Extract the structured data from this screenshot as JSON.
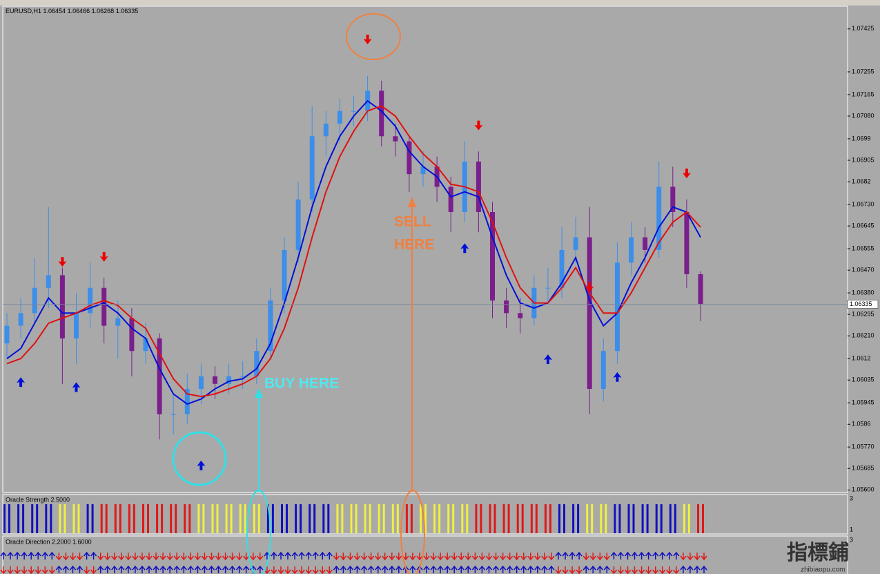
{
  "chart_data": {
    "type": "candlestick",
    "symbol": "EURUSD,H1",
    "open": [
      1.0618,
      1.0625,
      1.063,
      1.064,
      1.0645,
      1.062,
      1.063,
      1.064,
      1.0625,
      1.0628,
      1.0615,
      1.062,
      1.059,
      1.059,
      1.06,
      1.0605,
      1.0602,
      1.0605,
      1.0605,
      1.0615,
      1.0635,
      1.0655,
      1.0675,
      1.07,
      1.0705,
      1.071,
      1.071,
      1.0718,
      1.07,
      1.0698,
      1.0685,
      1.0688,
      1.068,
      1.067,
      1.069,
      1.067,
      1.0635,
      1.063,
      1.0628,
      1.064,
      1.064,
      1.0655,
      1.066,
      1.06,
      1.0615,
      1.065,
      1.066,
      1.0655,
      1.068,
      1.067,
      1.06454
    ],
    "high": [
      1.063,
      1.0636,
      1.0652,
      1.0672,
      1.0648,
      1.0638,
      1.065,
      1.0644,
      1.0635,
      1.0632,
      1.0626,
      1.0622,
      1.0598,
      1.0606,
      1.061,
      1.0609,
      1.061,
      1.0611,
      1.062,
      1.064,
      1.066,
      1.0682,
      1.0712,
      1.071,
      1.0715,
      1.0716,
      1.0724,
      1.0722,
      1.0705,
      1.07,
      1.0694,
      1.0692,
      1.0684,
      1.0698,
      1.0694,
      1.0674,
      1.064,
      1.0636,
      1.0645,
      1.0648,
      1.0664,
      1.0668,
      1.0672,
      1.062,
      1.0658,
      1.0666,
      1.0664,
      1.069,
      1.0688,
      1.0675,
      1.06466
    ],
    "low": [
      1.0612,
      1.062,
      1.0626,
      1.0632,
      1.0602,
      1.061,
      1.0624,
      1.0618,
      1.0612,
      1.0605,
      1.061,
      1.058,
      1.0582,
      1.0586,
      1.0594,
      1.0596,
      1.0598,
      1.06,
      1.0602,
      1.0612,
      1.063,
      1.065,
      1.067,
      1.0692,
      1.0698,
      1.0704,
      1.0706,
      1.0696,
      1.0692,
      1.0678,
      1.068,
      1.0674,
      1.0662,
      1.0666,
      1.0662,
      1.0628,
      1.0624,
      1.0622,
      1.0625,
      1.0634,
      1.0636,
      1.065,
      1.059,
      1.0595,
      1.061,
      1.0645,
      1.065,
      1.0652,
      1.0664,
      1.064,
      1.06268
    ],
    "close": [
      1.0625,
      1.063,
      1.064,
      1.0645,
      1.062,
      1.063,
      1.064,
      1.0625,
      1.0628,
      1.0615,
      1.062,
      1.059,
      1.059,
      1.06,
      1.0605,
      1.0602,
      1.0605,
      1.0605,
      1.0615,
      1.0635,
      1.0655,
      1.0675,
      1.07,
      1.0705,
      1.071,
      1.071,
      1.0718,
      1.07,
      1.0698,
      1.0685,
      1.0688,
      1.068,
      1.067,
      1.069,
      1.067,
      1.0635,
      1.063,
      1.0628,
      1.064,
      1.064,
      1.0655,
      1.066,
      1.06,
      1.0615,
      1.065,
      1.066,
      1.0655,
      1.068,
      1.067,
      1.06454,
      1.06335
    ],
    "up_color": "#3d8ee8",
    "down_color": "#7a1f8c",
    "series": [
      {
        "color": "#0010d8",
        "values": [
          1.0612,
          1.0616,
          1.0626,
          1.0636,
          1.063,
          1.063,
          1.0632,
          1.0634,
          1.063,
          1.0624,
          1.062,
          1.0608,
          1.0598,
          1.0594,
          1.0596,
          1.06,
          1.0603,
          1.0604,
          1.0608,
          1.0618,
          1.0634,
          1.0652,
          1.0672,
          1.0688,
          1.07,
          1.0708,
          1.0714,
          1.071,
          1.0704,
          1.0694,
          1.0688,
          1.0684,
          1.0676,
          1.0678,
          1.0676,
          1.066,
          1.0645,
          1.0634,
          1.0632,
          1.0634,
          1.0642,
          1.0652,
          1.0635,
          1.0625,
          1.063,
          1.0642,
          1.0652,
          1.0664,
          1.0672,
          1.067,
          1.066
        ]
      },
      {
        "color": "#e01010",
        "values": [
          1.061,
          1.0612,
          1.0618,
          1.0626,
          1.0628,
          1.063,
          1.0633,
          1.0635,
          1.0633,
          1.0628,
          1.0624,
          1.0614,
          1.0604,
          1.0598,
          1.0597,
          1.0598,
          1.06,
          1.0602,
          1.0605,
          1.0612,
          1.0624,
          1.064,
          1.066,
          1.0678,
          1.0692,
          1.0702,
          1.071,
          1.0712,
          1.0708,
          1.07,
          1.0693,
          1.0688,
          1.0681,
          1.068,
          1.0678,
          1.0666,
          1.0652,
          1.064,
          1.0634,
          1.0634,
          1.064,
          1.0648,
          1.0638,
          1.063,
          1.063,
          1.0638,
          1.0648,
          1.0658,
          1.0666,
          1.067,
          1.0664
        ]
      }
    ],
    "down_arrows": {
      "color": "#ee0000",
      "x": [
        4,
        7,
        26,
        34,
        42,
        49
      ],
      "values": [
        1.065,
        1.0652,
        1.0738,
        1.0704,
        1.064,
        1.0685
      ]
    },
    "up_arrows": {
      "color": "#0010d8",
      "x": [
        1,
        5,
        14,
        33,
        39,
        44
      ],
      "values": [
        1.0603,
        1.0601,
        1.057,
        1.0656,
        1.0612,
        1.0605
      ]
    },
    "ylim": [
      1.0559,
      1.07512
    ],
    "yticks": [
      1.07425,
      1.07255,
      1.07165,
      {
        "value": 1.0708,
        "label": "1.07080"
      },
      1.0699,
      1.06905,
      1.0682,
      {
        "value": 1.0673,
        "label": "1.06730"
      },
      1.06645,
      1.06555,
      {
        "value": 1.0647,
        "label": "1.06470"
      },
      {
        "value": 1.0638,
        "label": "1.06380"
      },
      1.06295,
      {
        "value": 1.0621,
        "label": "1.06210"
      },
      1.0612,
      1.06035,
      1.05945,
      1.0586,
      {
        "value": 1.0577,
        "label": "1.05770"
      },
      1.05685,
      {
        "value": 1.056,
        "label": "1.05600"
      }
    ],
    "annotations": {
      "buy": "BUY HERE",
      "sell": [
        "SELL",
        "HERE"
      ]
    }
  },
  "strength_panel": {
    "title": "Oracle Strength 2.5000",
    "scale_top": "3",
    "scale_bottom": "1",
    "colors": [
      "#1010c0",
      "#1010c0",
      "#1010c0",
      "#1010c0",
      "#f0f040",
      "#f0f040",
      "#1010c0",
      "#e01818",
      "#e01818",
      "#e01818",
      "#e01818",
      "#e01818",
      "#e01818",
      "#e01818",
      "#f0f040",
      "#f0f040",
      "#f0f040",
      "#f0f040",
      "#f0f040",
      "#1010c0",
      "#1010c0",
      "#1010c0",
      "#1010c0",
      "#1010c0",
      "#f0f040",
      "#f0f040",
      "#f0f040",
      "#f0f040",
      "#f0f040",
      "#e01818",
      "#f0f040",
      "#f0f040",
      "#f0f040",
      "#f0f040",
      "#e01818",
      "#e01818",
      "#e01818",
      "#e01818",
      "#e01818",
      "#e01818",
      "#1010c0",
      "#1010c0",
      "#f0f040",
      "#f0f040",
      "#1010c0",
      "#1010c0",
      "#1010c0",
      "#1010c0",
      "#1010c0",
      "#f0f040",
      "#e01818"
    ]
  },
  "direction_panel": {
    "title": "Oracle Direction 2.2000 1.6000",
    "scale_top": "3"
  },
  "watermark": {
    "text": "指標鋪",
    "url": "zhibiaopu.com"
  }
}
